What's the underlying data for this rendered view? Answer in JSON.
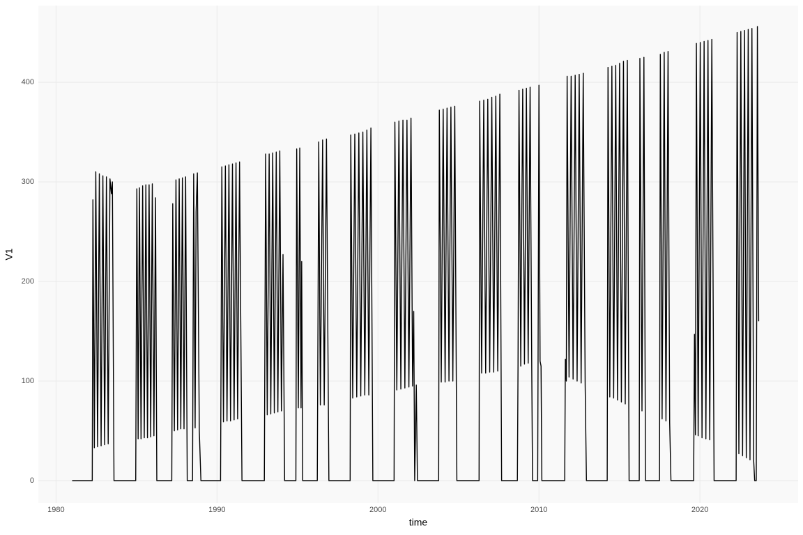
{
  "chart_data": {
    "type": "line",
    "x_label": "time",
    "y_label": "V1",
    "color": "#000000",
    "grid": true,
    "xlim": [
      1978.9,
      2026.1
    ],
    "ylim": [
      -22.4,
      477
    ],
    "xticks": [
      1980,
      1990,
      2000,
      2010,
      2020
    ],
    "yticks": [
      0,
      100,
      200,
      300,
      400
    ],
    "x": [
      1981.0,
      1982.25,
      1982.29,
      1982.38,
      1982.47,
      1982.58,
      1982.69,
      1982.8,
      1982.91,
      1983.02,
      1983.13,
      1983.24,
      1983.35,
      1983.44,
      1983.5,
      1983.6,
      1984.95,
      1985.02,
      1985.1,
      1985.18,
      1985.28,
      1985.38,
      1985.48,
      1985.58,
      1985.68,
      1985.78,
      1985.88,
      1985.98,
      1986.08,
      1986.18,
      1986.26,
      1987.19,
      1987.25,
      1987.35,
      1987.45,
      1987.55,
      1987.65,
      1987.75,
      1987.85,
      1987.95,
      1988.05,
      1988.15,
      1988.48,
      1988.55,
      1988.64,
      1988.7,
      1988.78,
      1988.9,
      1989.0,
      1990.22,
      1990.3,
      1990.4,
      1990.52,
      1990.62,
      1990.74,
      1990.84,
      1990.96,
      1991.06,
      1991.18,
      1991.28,
      1991.4,
      1991.55,
      1992.94,
      1993.02,
      1993.12,
      1993.24,
      1993.34,
      1993.46,
      1993.56,
      1993.68,
      1993.78,
      1993.9,
      1994.0,
      1994.1,
      1994.2,
      1994.9,
      1994.95,
      1995.05,
      1995.14,
      1995.22,
      1995.26,
      1995.32,
      1996.23,
      1996.32,
      1996.42,
      1996.56,
      1996.66,
      1996.8,
      1996.95,
      1998.27,
      1998.31,
      1998.43,
      1998.56,
      1998.68,
      1998.81,
      1998.93,
      1999.06,
      1999.18,
      1999.31,
      1999.43,
      1999.56,
      1999.68,
      2001.0,
      2001.05,
      2001.17,
      2001.3,
      2001.42,
      2001.55,
      2001.67,
      2001.8,
      2001.92,
      2002.05,
      2002.15,
      2002.22,
      2002.28,
      2002.38,
      2002.45,
      2003.77,
      2003.81,
      2003.93,
      2004.05,
      2004.17,
      2004.29,
      2004.41,
      2004.53,
      2004.65,
      2004.77,
      2004.9,
      2006.28,
      2006.32,
      2006.44,
      2006.57,
      2006.69,
      2006.82,
      2006.94,
      2007.07,
      2007.19,
      2007.32,
      2007.44,
      2007.57,
      2007.68,
      2008.66,
      2008.7,
      2008.76,
      2008.87,
      2008.99,
      2009.1,
      2009.22,
      2009.33,
      2009.45,
      2009.55,
      2009.6,
      2009.92,
      2010.0,
      2010.07,
      2010.13,
      2010.18,
      2011.6,
      2011.64,
      2011.7,
      2011.75,
      2011.87,
      2012.0,
      2012.12,
      2012.25,
      2012.37,
      2012.5,
      2012.62,
      2012.75,
      2012.87,
      2012.95,
      2014.24,
      2014.29,
      2014.4,
      2014.53,
      2014.64,
      2014.77,
      2014.88,
      2015.01,
      2015.12,
      2015.25,
      2015.36,
      2015.49,
      2015.6,
      2016.23,
      2016.27,
      2016.4,
      2016.52,
      2016.62,
      2017.49,
      2017.54,
      2017.65,
      2017.78,
      2017.89,
      2018.02,
      2018.12,
      2018.2,
      2019.61,
      2019.66,
      2019.72,
      2019.78,
      2019.89,
      2020.02,
      2020.13,
      2020.26,
      2020.37,
      2020.5,
      2020.61,
      2020.74,
      2020.88,
      2022.25,
      2022.31,
      2022.42,
      2022.54,
      2022.65,
      2022.77,
      2022.88,
      2023.0,
      2023.11,
      2023.23,
      2023.34,
      2023.4,
      2023.5,
      2023.57,
      2023.65
    ],
    "values": [
      0,
      0,
      282,
      33,
      310,
      34,
      308,
      35,
      306,
      36,
      305,
      37,
      303,
      288,
      300,
      0,
      0,
      293,
      42,
      294,
      42,
      296,
      43,
      297,
      43,
      297,
      44,
      298,
      45,
      284,
      0,
      0,
      278,
      50,
      302,
      51,
      303,
      52,
      304,
      52,
      305,
      0,
      0,
      308,
      53,
      270,
      309,
      50,
      0,
      0,
      315,
      59,
      316,
      60,
      317,
      60,
      318,
      61,
      319,
      62,
      320,
      0,
      0,
      328,
      66,
      328,
      67,
      329,
      68,
      330,
      69,
      331,
      70,
      227,
      0,
      0,
      333,
      73,
      334,
      73,
      220,
      0,
      0,
      340,
      76,
      342,
      76,
      343,
      0,
      0,
      347,
      83,
      348,
      84,
      349,
      85,
      350,
      86,
      352,
      86,
      354,
      0,
      0,
      360,
      91,
      361,
      92,
      362,
      93,
      362,
      94,
      364,
      95,
      170,
      0,
      96,
      0,
      0,
      372,
      99,
      373,
      99,
      374,
      100,
      375,
      100,
      376,
      0,
      0,
      381,
      108,
      382,
      108,
      383,
      109,
      385,
      109,
      386,
      110,
      388,
      0,
      0,
      115,
      392,
      115,
      393,
      117,
      394,
      118,
      395,
      120,
      0,
      0,
      397,
      120,
      115,
      0,
      0,
      122,
      100,
      406,
      104,
      406,
      102,
      407,
      100,
      408,
      98,
      409,
      96,
      0,
      0,
      415,
      84,
      416,
      83,
      417,
      81,
      419,
      79,
      421,
      77,
      422,
      0,
      0,
      424,
      70,
      425,
      0,
      0,
      428,
      62,
      430,
      60,
      431,
      58,
      0,
      0,
      147,
      46,
      439,
      45,
      440,
      43,
      441,
      42,
      442,
      41,
      443,
      0,
      0,
      450,
      27,
      451,
      25,
      452,
      23,
      453,
      21,
      454,
      20,
      0,
      0,
      456,
      160
    ]
  }
}
